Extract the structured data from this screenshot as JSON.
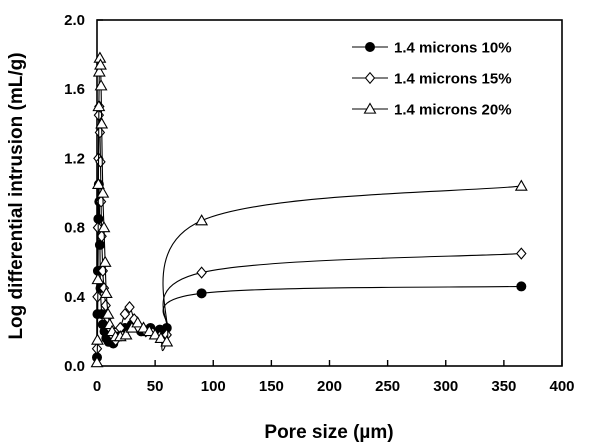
{
  "chart_data": {
    "type": "line",
    "title": "",
    "xlabel": "Pore size (µm)",
    "ylabel": "Log differential intrusion (mL/g)",
    "xlim": [
      0,
      400
    ],
    "ylim": [
      0,
      2.0
    ],
    "x_ticks": [
      "0",
      "50",
      "100",
      "150",
      "200",
      "250",
      "300",
      "350",
      "400"
    ],
    "y_ticks": [
      "0.0",
      "0.4",
      "0.8",
      "1.2",
      "1.6",
      "2.0"
    ],
    "x_tick_values": [
      0,
      50,
      100,
      150,
      200,
      250,
      300,
      350,
      400
    ],
    "y_tick_values": [
      0,
      0.4,
      0.8,
      1.2,
      1.6,
      2.0
    ],
    "grid": false,
    "legend_position": "top-right",
    "series": [
      {
        "name": "1.4 microns 10%",
        "marker": "filled-circle",
        "x": [
          0.0,
          0.4,
          0.8,
          1.2,
          1.6,
          2.0,
          2.5,
          3.0,
          4.0,
          5.0,
          6.5,
          8.0,
          10,
          14,
          18,
          24,
          30,
          38,
          46,
          54,
          60,
          90,
          365
        ],
        "y": [
          0.05,
          0.3,
          0.55,
          0.85,
          1.05,
          0.95,
          0.7,
          0.45,
          0.3,
          0.24,
          0.2,
          0.16,
          0.14,
          0.13,
          0.17,
          0.22,
          0.24,
          0.2,
          0.22,
          0.21,
          0.22,
          0.42,
          0.46
        ]
      },
      {
        "name": "1.4 microns 15%",
        "marker": "open-diamond",
        "x": [
          0.0,
          0.4,
          0.8,
          1.2,
          1.6,
          2.0,
          2.5,
          3.0,
          3.5,
          4.0,
          5.0,
          6.0,
          7.5,
          9.0,
          11,
          13,
          16,
          20,
          24,
          28,
          32,
          36,
          42,
          48,
          54,
          60,
          90,
          365
        ],
        "y": [
          0.1,
          0.4,
          0.8,
          1.2,
          1.45,
          1.5,
          1.35,
          1.18,
          0.95,
          0.75,
          0.55,
          0.45,
          0.35,
          0.28,
          0.22,
          0.18,
          0.15,
          0.22,
          0.3,
          0.34,
          0.27,
          0.22,
          0.2,
          0.19,
          0.17,
          0.18,
          0.54,
          0.65
        ]
      },
      {
        "name": "1.4 microns 20%",
        "marker": "open-triangle",
        "x": [
          0.0,
          0.4,
          0.8,
          1.2,
          1.6,
          2.0,
          2.5,
          3.0,
          3.5,
          4.0,
          5.0,
          6.0,
          7.0,
          8.0,
          9.5,
          11,
          13,
          16,
          20,
          25,
          30,
          35,
          40,
          45,
          50,
          55,
          60,
          90,
          365
        ],
        "y": [
          0.02,
          0.15,
          0.5,
          1.05,
          1.5,
          1.7,
          1.78,
          1.74,
          1.62,
          1.4,
          1.0,
          0.8,
          0.6,
          0.42,
          0.3,
          0.24,
          0.2,
          0.17,
          0.17,
          0.18,
          0.22,
          0.25,
          0.22,
          0.2,
          0.18,
          0.16,
          0.14,
          0.84,
          1.04
        ]
      }
    ]
  }
}
